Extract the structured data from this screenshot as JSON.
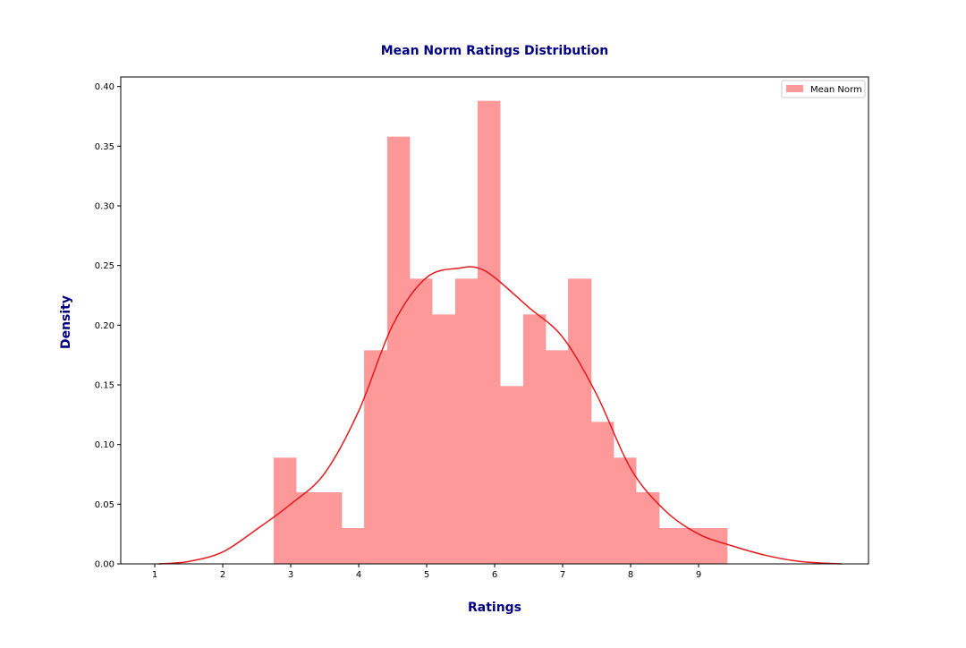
{
  "chart_data": {
    "type": "bar",
    "title": "Mean Norm Ratings Distribution",
    "xlabel": "Ratings",
    "ylabel": "Density",
    "xlim": [
      0.5,
      11.5
    ],
    "ylim": [
      0,
      0.408
    ],
    "x_ticks": [
      "1",
      "2",
      "3",
      "4",
      "5",
      "6",
      "7",
      "8",
      "9"
    ],
    "y_ticks": [
      "0.00",
      "0.05",
      "0.10",
      "0.15",
      "0.20",
      "0.25",
      "0.30",
      "0.35",
      "0.40"
    ],
    "legend": {
      "position": "top-right",
      "entries": [
        "Mean Norm"
      ]
    },
    "grid": false,
    "colors": {
      "bars": "#ff9999",
      "kde": "#e41a1c",
      "title": "#000080",
      "axis_label": "#000080"
    },
    "series": [
      {
        "name": "Mean Norm",
        "kind": "histogram",
        "bins": [
          {
            "x0": 2.75,
            "x1": 3.08,
            "value": 0.089
          },
          {
            "x0": 3.08,
            "x1": 3.42,
            "value": 0.06
          },
          {
            "x0": 3.42,
            "x1": 3.75,
            "value": 0.06
          },
          {
            "x0": 3.75,
            "x1": 4.08,
            "value": 0.03
          },
          {
            "x0": 4.08,
            "x1": 4.42,
            "value": 0.179
          },
          {
            "x0": 4.42,
            "x1": 4.75,
            "value": 0.358
          },
          {
            "x0": 4.75,
            "x1": 5.08,
            "value": 0.239
          },
          {
            "x0": 5.08,
            "x1": 5.42,
            "value": 0.209
          },
          {
            "x0": 5.42,
            "x1": 5.75,
            "value": 0.239
          },
          {
            "x0": 5.75,
            "x1": 6.08,
            "value": 0.388
          },
          {
            "x0": 6.08,
            "x1": 6.42,
            "value": 0.149
          },
          {
            "x0": 6.42,
            "x1": 6.75,
            "value": 0.209
          },
          {
            "x0": 6.75,
            "x1": 7.08,
            "value": 0.179
          },
          {
            "x0": 7.08,
            "x1": 7.42,
            "value": 0.239
          },
          {
            "x0": 7.42,
            "x1": 7.75,
            "value": 0.119
          },
          {
            "x0": 7.75,
            "x1": 8.08,
            "value": 0.089
          },
          {
            "x0": 8.08,
            "x1": 8.42,
            "value": 0.06
          },
          {
            "x0": 8.42,
            "x1": 8.75,
            "value": 0.03
          },
          {
            "x0": 8.75,
            "x1": 9.08,
            "value": 0.03
          },
          {
            "x0": 9.08,
            "x1": 9.42,
            "value": 0.03
          }
        ]
      },
      {
        "kind": "kde",
        "points": [
          [
            1.05,
            0.0
          ],
          [
            1.5,
            0.002
          ],
          [
            2.0,
            0.01
          ],
          [
            2.5,
            0.029
          ],
          [
            3.0,
            0.05
          ],
          [
            3.5,
            0.076
          ],
          [
            4.0,
            0.128
          ],
          [
            4.5,
            0.2
          ],
          [
            5.0,
            0.24
          ],
          [
            5.5,
            0.248
          ],
          [
            5.75,
            0.248
          ],
          [
            6.0,
            0.24
          ],
          [
            6.5,
            0.215
          ],
          [
            7.0,
            0.19
          ],
          [
            7.5,
            0.142
          ],
          [
            8.0,
            0.08
          ],
          [
            8.5,
            0.045
          ],
          [
            9.0,
            0.025
          ],
          [
            9.5,
            0.015
          ],
          [
            10.0,
            0.007
          ],
          [
            10.5,
            0.002
          ],
          [
            11.1,
            0.0
          ]
        ]
      }
    ]
  }
}
